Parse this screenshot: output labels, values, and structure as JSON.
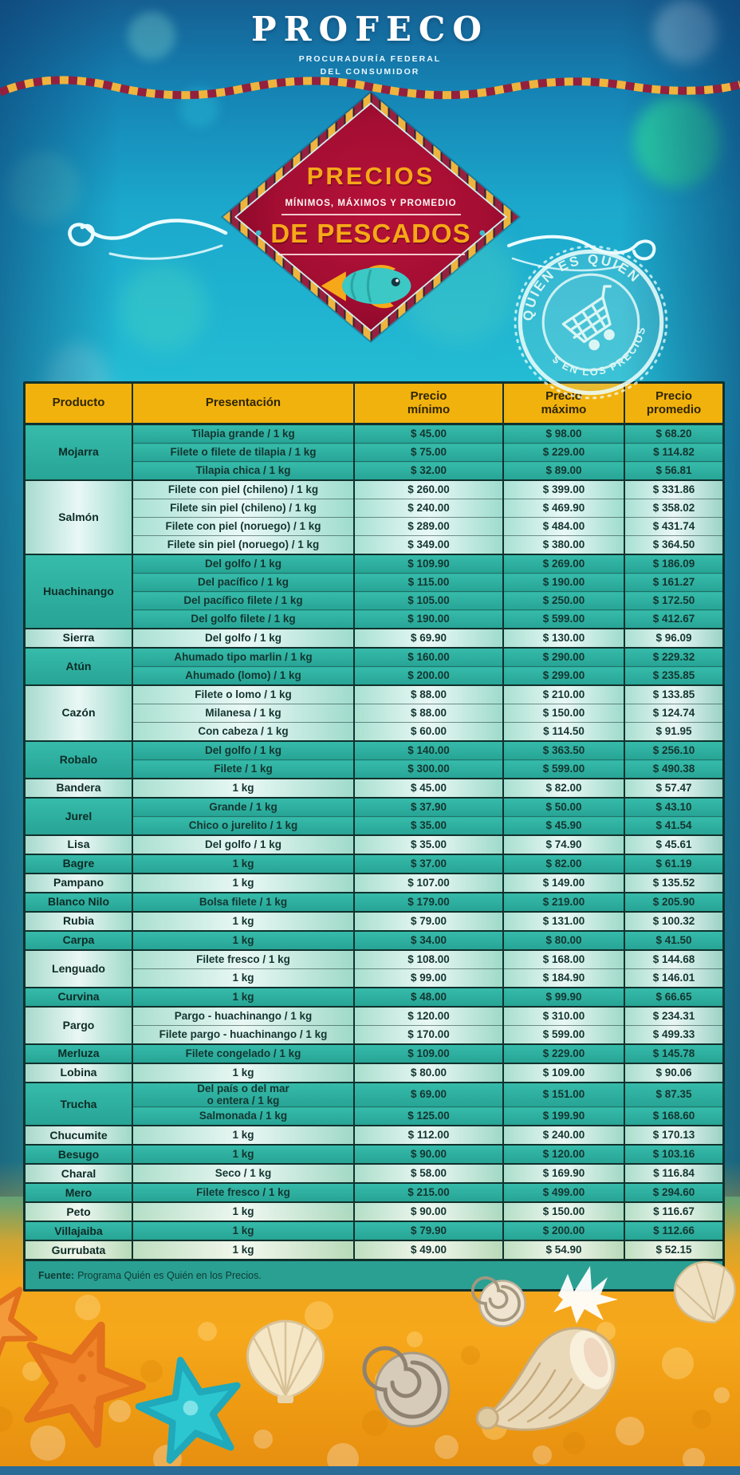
{
  "brand": {
    "name": "PROFECO",
    "tagline_line1": "PROCURADURÍA FEDERAL",
    "tagline_line2": "DEL CONSUMIDOR"
  },
  "badge": {
    "title_top": "PRECIOS",
    "subtitle": "MÍNIMOS, MÁXIMOS Y PROMEDIO",
    "title_main": "DE PESCADOS",
    "left_dot": "•",
    "right_dot": "•"
  },
  "stamp": {
    "arc_top": "QUIÉN ES QUIÉN",
    "arc_bottom": "$ EN LOS PRECIOS"
  },
  "table": {
    "columns": [
      "Producto",
      "Presentación",
      "Precio\nmínimo",
      "Precio\nmáximo",
      "Precio\npromedio"
    ],
    "groups": [
      {
        "product": "Mojarra",
        "rows": [
          {
            "presentation": "Tilapia grande / 1 kg",
            "min": "$ 45.00",
            "max": "$ 98.00",
            "avg": "$ 68.20"
          },
          {
            "presentation": "Filete o filete de tilapia / 1 kg",
            "min": "$ 75.00",
            "max": "$ 229.00",
            "avg": "$ 114.82"
          },
          {
            "presentation": "Tilapia chica / 1 kg",
            "min": "$ 32.00",
            "max": "$ 89.00",
            "avg": "$ 56.81"
          }
        ]
      },
      {
        "product": "Salmón",
        "rows": [
          {
            "presentation": "Filete con piel (chileno) / 1 kg",
            "min": "$ 260.00",
            "max": "$ 399.00",
            "avg": "$ 331.86"
          },
          {
            "presentation": "Filete sin piel (chileno) / 1 kg",
            "min": "$ 240.00",
            "max": "$ 469.90",
            "avg": "$ 358.02"
          },
          {
            "presentation": "Filete con piel (noruego) / 1 kg",
            "min": "$ 289.00",
            "max": "$ 484.00",
            "avg": "$ 431.74"
          },
          {
            "presentation": "Filete sin piel (noruego) / 1 kg",
            "min": "$ 349.00",
            "max": "$ 380.00",
            "avg": "$ 364.50"
          }
        ]
      },
      {
        "product": "Huachinango",
        "rows": [
          {
            "presentation": "Del golfo / 1 kg",
            "min": "$ 109.90",
            "max": "$ 269.00",
            "avg": "$ 186.09"
          },
          {
            "presentation": "Del pacífico / 1 kg",
            "min": "$ 115.00",
            "max": "$ 190.00",
            "avg": "$ 161.27"
          },
          {
            "presentation": "Del pacífico filete / 1 kg",
            "min": "$ 105.00",
            "max": "$ 250.00",
            "avg": "$ 172.50"
          },
          {
            "presentation": "Del golfo filete / 1 kg",
            "min": "$ 190.00",
            "max": "$ 599.00",
            "avg": "$ 412.67"
          }
        ]
      },
      {
        "product": "Sierra",
        "rows": [
          {
            "presentation": "Del golfo / 1 kg",
            "min": "$ 69.90",
            "max": "$ 130.00",
            "avg": "$ 96.09"
          }
        ]
      },
      {
        "product": "Atún",
        "rows": [
          {
            "presentation": "Ahumado tipo marlin / 1 kg",
            "min": "$ 160.00",
            "max": "$ 290.00",
            "avg": "$ 229.32"
          },
          {
            "presentation": "Ahumado (lomo) / 1 kg",
            "min": "$ 200.00",
            "max": "$ 299.00",
            "avg": "$ 235.85"
          }
        ]
      },
      {
        "product": "Cazón",
        "rows": [
          {
            "presentation": "Filete o lomo / 1 kg",
            "min": "$ 88.00",
            "max": "$ 210.00",
            "avg": "$ 133.85"
          },
          {
            "presentation": "Milanesa / 1 kg",
            "min": "$ 88.00",
            "max": "$ 150.00",
            "avg": "$ 124.74"
          },
          {
            "presentation": "Con cabeza / 1 kg",
            "min": "$ 60.00",
            "max": "$ 114.50",
            "avg": "$ 91.95"
          }
        ]
      },
      {
        "product": "Robalo",
        "rows": [
          {
            "presentation": "Del golfo / 1 kg",
            "min": "$ 140.00",
            "max": "$ 363.50",
            "avg": "$ 256.10"
          },
          {
            "presentation": "Filete / 1 kg",
            "min": "$ 300.00",
            "max": "$ 599.00",
            "avg": "$ 490.38"
          }
        ]
      },
      {
        "product": "Bandera",
        "rows": [
          {
            "presentation": "1 kg",
            "min": "$ 45.00",
            "max": "$ 82.00",
            "avg": "$ 57.47"
          }
        ]
      },
      {
        "product": "Jurel",
        "rows": [
          {
            "presentation": "Grande / 1 kg",
            "min": "$ 37.90",
            "max": "$ 50.00",
            "avg": "$ 43.10"
          },
          {
            "presentation": "Chico o jurelito / 1 kg",
            "min": "$ 35.00",
            "max": "$ 45.90",
            "avg": "$ 41.54"
          }
        ]
      },
      {
        "product": "Lisa",
        "rows": [
          {
            "presentation": "Del golfo / 1 kg",
            "min": "$ 35.00",
            "max": "$ 74.90",
            "avg": "$ 45.61"
          }
        ]
      },
      {
        "product": "Bagre",
        "rows": [
          {
            "presentation": "1 kg",
            "min": "$ 37.00",
            "max": "$ 82.00",
            "avg": "$ 61.19"
          }
        ]
      },
      {
        "product": "Pampano",
        "rows": [
          {
            "presentation": "1 kg",
            "min": "$ 107.00",
            "max": "$ 149.00",
            "avg": "$ 135.52"
          }
        ]
      },
      {
        "product": "Blanco Nilo",
        "rows": [
          {
            "presentation": "Bolsa filete / 1 kg",
            "min": "$ 179.00",
            "max": "$ 219.00",
            "avg": "$ 205.90"
          }
        ]
      },
      {
        "product": "Rubia",
        "rows": [
          {
            "presentation": "1 kg",
            "min": "$ 79.00",
            "max": "$ 131.00",
            "avg": "$ 100.32"
          }
        ]
      },
      {
        "product": "Carpa",
        "rows": [
          {
            "presentation": "1 kg",
            "min": "$ 34.00",
            "max": "$ 80.00",
            "avg": "$ 41.50"
          }
        ]
      },
      {
        "product": "Lenguado",
        "rows": [
          {
            "presentation": "Filete fresco / 1 kg",
            "min": "$ 108.00",
            "max": "$ 168.00",
            "avg": "$ 144.68"
          },
          {
            "presentation": "1 kg",
            "min": "$ 99.00",
            "max": "$ 184.90",
            "avg": "$ 146.01"
          }
        ]
      },
      {
        "product": "Curvina",
        "rows": [
          {
            "presentation": "1 kg",
            "min": "$ 48.00",
            "max": "$ 99.90",
            "avg": "$ 66.65"
          }
        ]
      },
      {
        "product": "Pargo",
        "rows": [
          {
            "presentation": "Pargo - huachinango / 1 kg",
            "min": "$ 120.00",
            "max": "$ 310.00",
            "avg": "$ 234.31"
          },
          {
            "presentation": "Filete pargo - huachinango / 1 kg",
            "min": "$ 170.00",
            "max": "$ 599.00",
            "avg": "$ 499.33"
          }
        ]
      },
      {
        "product": "Merluza",
        "rows": [
          {
            "presentation": "Filete congelado / 1 kg",
            "min": "$ 109.00",
            "max": "$ 229.00",
            "avg": "$ 145.78"
          }
        ]
      },
      {
        "product": "Lobina",
        "rows": [
          {
            "presentation": "1 kg",
            "min": "$ 80.00",
            "max": "$ 109.00",
            "avg": "$ 90.06"
          }
        ]
      },
      {
        "product": "Trucha",
        "rows": [
          {
            "presentation": "Del país o del mar\no entera / 1 kg",
            "min": "$ 69.00",
            "max": "$ 151.00",
            "avg": "$ 87.35"
          },
          {
            "presentation": "Salmonada / 1 kg",
            "min": "$ 125.00",
            "max": "$ 199.90",
            "avg": "$ 168.60"
          }
        ]
      },
      {
        "product": "Chucumite",
        "rows": [
          {
            "presentation": "1 kg",
            "min": "$ 112.00",
            "max": "$ 240.00",
            "avg": "$ 170.13"
          }
        ]
      },
      {
        "product": "Besugo",
        "rows": [
          {
            "presentation": "1 kg",
            "min": "$ 90.00",
            "max": "$ 120.00",
            "avg": "$ 103.16"
          }
        ]
      },
      {
        "product": "Charal",
        "rows": [
          {
            "presentation": "Seco / 1 kg",
            "min": "$ 58.00",
            "max": "$ 169.90",
            "avg": "$ 116.84"
          }
        ]
      },
      {
        "product": "Mero",
        "rows": [
          {
            "presentation": "Filete fresco / 1 kg",
            "min": "$ 215.00",
            "max": "$ 499.00",
            "avg": "$ 294.60"
          }
        ]
      },
      {
        "product": "Peto",
        "rows": [
          {
            "presentation": "1 kg",
            "min": "$ 90.00",
            "max": "$ 150.00",
            "avg": "$ 116.67"
          }
        ]
      },
      {
        "product": "Villajaiba",
        "rows": [
          {
            "presentation": "1 kg",
            "min": "$ 79.90",
            "max": "$ 200.00",
            "avg": "$ 112.66"
          }
        ]
      },
      {
        "product": "Gurrubata",
        "rows": [
          {
            "presentation": "1 kg",
            "min": "$ 49.00",
            "max": "$ 54.90",
            "avg": "$ 52.15"
          }
        ]
      }
    ]
  },
  "footer": {
    "source_label": "Fuente:",
    "source_text": "Programa Quién es Quién en los Precios."
  },
  "colors": {
    "header_yellow": "#f2b20d",
    "badge_red": "#ac0f35",
    "accent_orange": "#f6a818",
    "rope_yellow": "#eeb43e",
    "rope_maroon": "#93203f",
    "row_teal_dark": "#2cb0a0",
    "row_mint_light": "#d9f2e8",
    "table_border": "#10312d",
    "footer_teal": "#2aa093",
    "sand_orange": "#f3a51c",
    "sky_cyan": "#1fb4cf",
    "sea_blue": "#15608f",
    "starfish_orange": "#f08428",
    "starfish_teal": "#2cc6d0"
  }
}
